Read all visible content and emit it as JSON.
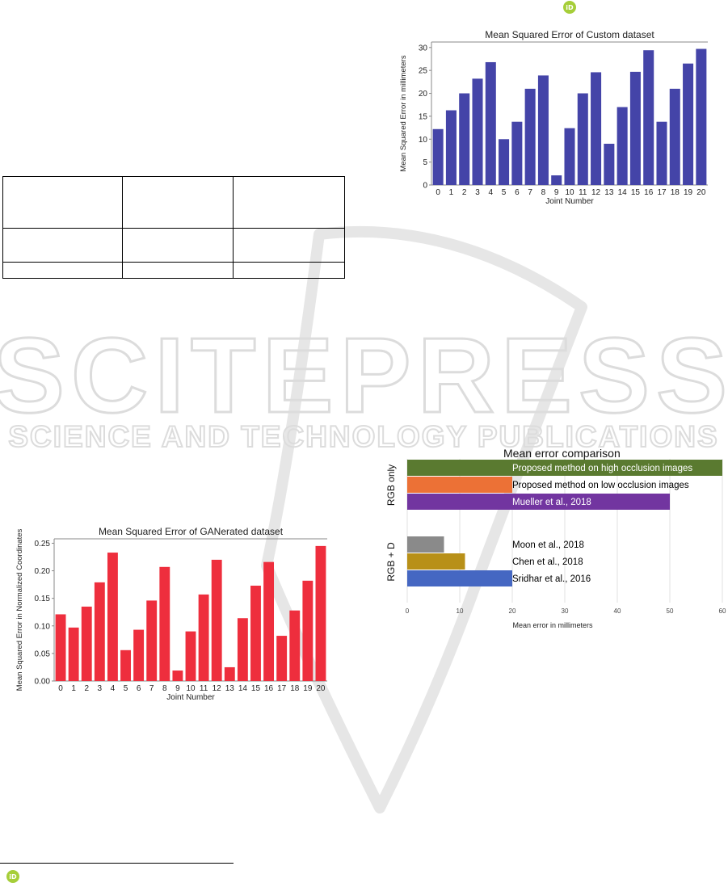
{
  "watermark": {
    "main": "SCITEPRESS",
    "sub": "SCIENCE AND TECHNOLOGY PUBLICATIONS"
  },
  "orcid": {
    "label": "iD"
  },
  "colors": {
    "custom_bar": "#4444a8",
    "ganerated_bar": "#ee2e3d",
    "high_occ": "#5a7a30",
    "low_occ": "#ec7136",
    "mueller": "#7235a0",
    "moon": "#8a8a8a",
    "chen": "#b89018",
    "sridhar": "#4567c2"
  },
  "chart_data": [
    {
      "type": "bar",
      "title": "Mean Squared Error of Custom dataset",
      "xlabel": "Joint Number",
      "ylabel": "Mean Squared Error in millimeters",
      "categories": [
        "0",
        "1",
        "2",
        "3",
        "4",
        "5",
        "6",
        "7",
        "8",
        "9",
        "10",
        "11",
        "12",
        "13",
        "14",
        "15",
        "16",
        "17",
        "18",
        "19",
        "20"
      ],
      "values": [
        12.2,
        16.3,
        20.0,
        23.2,
        26.8,
        10.0,
        13.8,
        21.0,
        23.9,
        2.1,
        12.4,
        20.0,
        24.6,
        9.0,
        17.0,
        24.7,
        29.4,
        13.8,
        21.0,
        26.5,
        29.7
      ],
      "ylim": [
        0,
        31.2
      ],
      "yticks": [
        "0",
        "5",
        "10",
        "15",
        "20",
        "25",
        "30"
      ],
      "grid": false
    },
    {
      "type": "bar",
      "title": "Mean Squared Error of GANerated dataset",
      "xlabel": "Joint Number",
      "ylabel": "Mean Squared Error in Normalized Coordinates",
      "categories": [
        "0",
        "1",
        "2",
        "3",
        "4",
        "5",
        "6",
        "7",
        "8",
        "9",
        "10",
        "11",
        "12",
        "13",
        "14",
        "15",
        "16",
        "17",
        "18",
        "19",
        "20"
      ],
      "values": [
        0.121,
        0.097,
        0.135,
        0.179,
        0.233,
        0.056,
        0.093,
        0.146,
        0.207,
        0.019,
        0.09,
        0.157,
        0.22,
        0.025,
        0.114,
        0.173,
        0.216,
        0.082,
        0.128,
        0.182,
        0.245
      ],
      "ylim": [
        0,
        0.258
      ],
      "yticks": [
        "0.00",
        "0.05",
        "0.10",
        "0.15",
        "0.20",
        "0.25"
      ],
      "grid": false
    },
    {
      "type": "bar",
      "orientation": "horizontal",
      "title": "Mean error comparison",
      "xlabel": "Mean error in millimeters",
      "xlim": [
        0,
        60
      ],
      "xticks": [
        "0",
        "10",
        "20",
        "30",
        "40",
        "50",
        "60"
      ],
      "grid": true,
      "groups": [
        {
          "label": "RGB only",
          "bars": [
            {
              "label": "Proposed method on high occlusion images",
              "value": 60,
              "color": "#5a7a30",
              "label_color": "#ffffff"
            },
            {
              "label": "Proposed method on low occlusion images",
              "value": 20,
              "color": "#ec7136",
              "label_color": "#000000"
            },
            {
              "label": "Mueller et al., 2018",
              "value": 50,
              "color": "#7235a0",
              "label_color": "#ffffff"
            }
          ]
        },
        {
          "label": "RGB + D",
          "bars": [
            {
              "label": "Moon et al., 2018",
              "value": 7,
              "color": "#8a8a8a",
              "label_color": "#000000"
            },
            {
              "label": "Chen et al., 2018",
              "value": 11,
              "color": "#b89018",
              "label_color": "#000000"
            },
            {
              "label": "Sridhar et al., 2016",
              "value": 20,
              "color": "#4567c2",
              "label_color": "#000000"
            }
          ]
        }
      ]
    }
  ]
}
